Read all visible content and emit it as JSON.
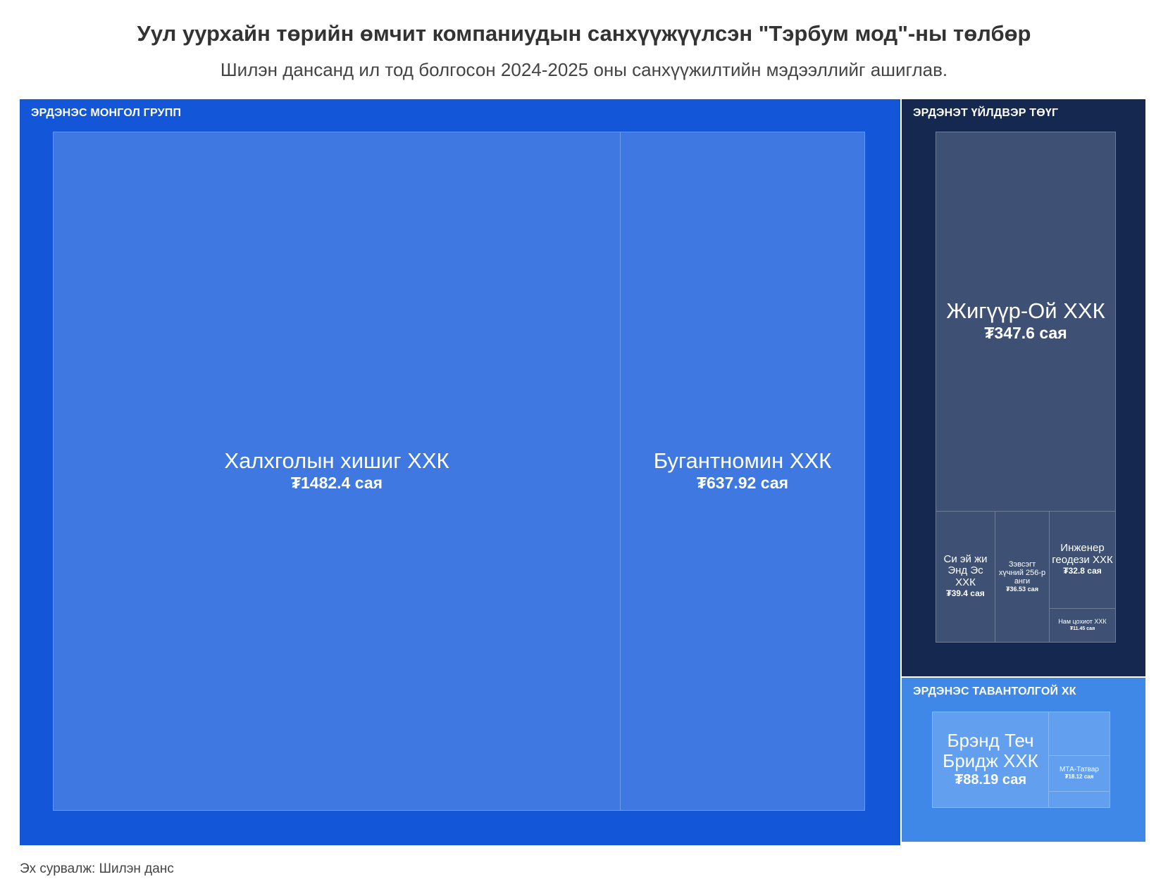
{
  "title": "Уул уурхайн төрийн өмчит компаниудын санхүүжүүлсэн \"Тэрбум мод\"-ны төлбөр",
  "subtitle": "Шилэн дансанд ил тод болгосон 2024-2025 оны санхүүжилтийн мэдээллийг ашиглав.",
  "source": "Эх сурвалж: Шилэн данс",
  "chart_data": {
    "type": "treemap",
    "unit": "сая ₮",
    "groups": [
      {
        "name": "ЭРДЭНЭС МОНГОЛ ГРУПП",
        "color": "#1356d8",
        "children": [
          {
            "name": "Халхголын хишиг ХХК",
            "value": 1482.4,
            "label": "₮1482.4 сая"
          },
          {
            "name": "Бугантномин ХХК",
            "value": 637.92,
            "label": "₮637.92 сая"
          }
        ]
      },
      {
        "name": "ЭРДЭНЭТ ҮЙЛДВЭР ТӨҮГ",
        "color": "#15284f",
        "children": [
          {
            "name": "Жигүүр-Ой ХХК",
            "value": 347.6,
            "label": "₮347.6 сая"
          },
          {
            "name": "Си эй жи Энд Эс ХХК",
            "value": 39.4,
            "label": "₮39.4 сая"
          },
          {
            "name": "Зэвсэгт хүчний 256-р анги",
            "value": 36.53,
            "label": "₮36.53 сая"
          },
          {
            "name": "Инженер геодези ХХК",
            "value": 32.8,
            "label": "₮32.8 сая"
          },
          {
            "name": "Нам цохиот ХХК",
            "value": 11.45,
            "label": "₮11.45 сая"
          }
        ]
      },
      {
        "name": "ЭРДЭНЭС ТАВАНТОЛГОЙ ХК",
        "color": "#3f88e8",
        "children": [
          {
            "name": "Брэнд Теч Бридж ХХК",
            "value": 88.19,
            "label": "₮88.19 сая"
          },
          {
            "name": "МТА-Татвар",
            "value": 18.12,
            "label": "₮18.12 сая"
          }
        ]
      }
    ]
  }
}
